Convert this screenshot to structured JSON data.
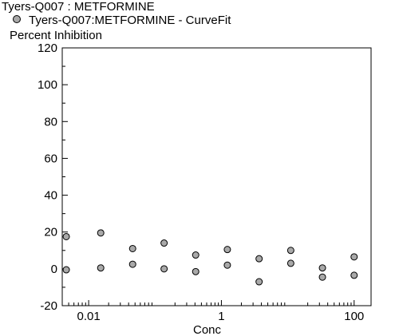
{
  "title": "Tyers-Q007  : METFORMINE",
  "chart_data": {
    "type": "scatter",
    "xlabel": "Conc",
    "ylabel": "Percent Inhibition",
    "xscale": "log",
    "xlim": [
      0.004,
      180
    ],
    "ylim": [
      -20,
      120
    ],
    "yticks": [
      -20,
      0,
      20,
      40,
      60,
      80,
      100,
      120
    ],
    "xticks": [
      0.01,
      1,
      100
    ],
    "xtick_labels": [
      "0.01",
      "1",
      "100"
    ],
    "grid": false,
    "legend_position": "top-left",
    "marker_color": "#a9a9a9",
    "series": [
      {
        "name": "Tyers-Q007:METFORMINE - CurveFit",
        "points": [
          {
            "x": 0.0046,
            "y": 17.5
          },
          {
            "x": 0.0046,
            "y": -0.5
          },
          {
            "x": 0.0152,
            "y": 19.5
          },
          {
            "x": 0.0152,
            "y": 0.5
          },
          {
            "x": 0.046,
            "y": 11
          },
          {
            "x": 0.046,
            "y": 2.5
          },
          {
            "x": 0.137,
            "y": 14
          },
          {
            "x": 0.137,
            "y": 0
          },
          {
            "x": 0.41,
            "y": 7.5
          },
          {
            "x": 0.41,
            "y": -1.5
          },
          {
            "x": 1.23,
            "y": 10.5
          },
          {
            "x": 1.23,
            "y": 2
          },
          {
            "x": 3.7,
            "y": 5.5
          },
          {
            "x": 3.7,
            "y": -7
          },
          {
            "x": 11.1,
            "y": 10
          },
          {
            "x": 11.1,
            "y": 3
          },
          {
            "x": 33.3,
            "y": 0.5
          },
          {
            "x": 33.3,
            "y": -4.5
          },
          {
            "x": 100,
            "y": 6.5
          },
          {
            "x": 100,
            "y": -3.5
          }
        ]
      }
    ]
  }
}
